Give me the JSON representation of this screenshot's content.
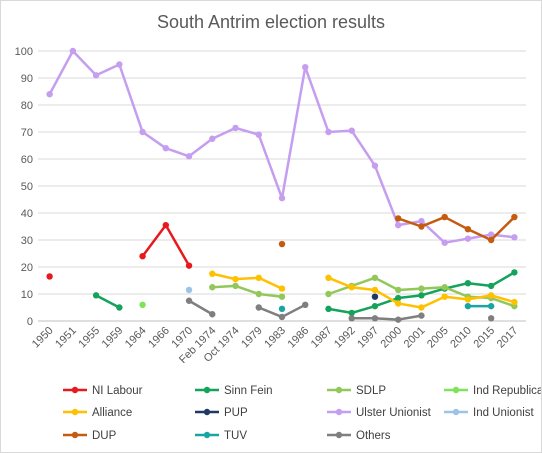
{
  "chart_data": {
    "type": "line",
    "title": "South Antrim election results",
    "xlabel": "",
    "ylabel": "",
    "ylim": [
      0,
      100
    ],
    "yticks": [
      "0",
      "10",
      "20",
      "30",
      "40",
      "50",
      "60",
      "70",
      "80",
      "90",
      "100"
    ],
    "grid": "horizontal",
    "legend_position": "bottom",
    "categories": [
      "1950",
      "1951",
      "1955",
      "1959",
      "1964",
      "1966",
      "1970",
      "Feb 1974",
      "Oct 1974",
      "1979",
      "1983",
      "1986",
      "1987",
      "1992",
      "1997",
      "2000",
      "2001",
      "2005",
      "2010",
      "2015",
      "2017"
    ],
    "series": [
      {
        "name": "NI Labour",
        "color": "#e8191c",
        "values": [
          16.5,
          null,
          null,
          null,
          24,
          35.5,
          20.5,
          null,
          null,
          null,
          null,
          null,
          null,
          null,
          null,
          null,
          null,
          null,
          null,
          null,
          null
        ]
      },
      {
        "name": "Sinn Fein",
        "color": "#13a35a",
        "values": [
          null,
          null,
          9.5,
          5,
          null,
          null,
          null,
          null,
          null,
          null,
          null,
          null,
          4.5,
          3,
          5.5,
          8.5,
          9.5,
          12,
          14,
          13,
          18
        ]
      },
      {
        "name": "SDLP",
        "color": "#92c85a",
        "values": [
          null,
          null,
          null,
          null,
          null,
          null,
          null,
          12.5,
          13,
          10,
          9,
          null,
          10,
          13,
          16,
          11.5,
          12,
          12.5,
          9,
          8.5,
          5.5
        ]
      },
      {
        "name": "Ind Republican",
        "color": "#7fe35a",
        "values": [
          null,
          null,
          null,
          null,
          6,
          null,
          null,
          null,
          null,
          null,
          null,
          null,
          null,
          null,
          null,
          null,
          null,
          null,
          null,
          null,
          null
        ]
      },
      {
        "name": "Alliance",
        "color": "#ffc000",
        "values": [
          null,
          null,
          null,
          null,
          null,
          null,
          null,
          17.5,
          15.5,
          16,
          12,
          null,
          16,
          12.5,
          11.5,
          6.5,
          5,
          9,
          8,
          9.5,
          7
        ]
      },
      {
        "name": "PUP",
        "color": "#203864",
        "values": [
          null,
          null,
          null,
          null,
          null,
          null,
          null,
          null,
          null,
          null,
          null,
          null,
          null,
          null,
          9,
          null,
          null,
          null,
          null,
          null,
          null
        ]
      },
      {
        "name": "Ulster Unionist",
        "color": "#c59ef0",
        "values": [
          84,
          100,
          91,
          95,
          70,
          64,
          61,
          67.5,
          71.5,
          69,
          45.5,
          94,
          70,
          70.5,
          57.5,
          35.5,
          37,
          29,
          30.5,
          32,
          31
        ]
      },
      {
        "name": "Ind Unionist",
        "color": "#9dc3e6",
        "values": [
          null,
          null,
          null,
          null,
          null,
          null,
          11.5,
          null,
          null,
          null,
          null,
          null,
          null,
          null,
          null,
          null,
          null,
          null,
          null,
          null,
          null
        ]
      },
      {
        "name": "DUP",
        "color": "#c55a11",
        "values": [
          null,
          null,
          null,
          null,
          null,
          null,
          null,
          null,
          null,
          null,
          28.5,
          null,
          null,
          null,
          null,
          38,
          35,
          38.5,
          34,
          30,
          38.5
        ]
      },
      {
        "name": "TUV",
        "color": "#1aa5a5",
        "values": [
          null,
          null,
          null,
          null,
          null,
          null,
          null,
          null,
          null,
          null,
          4.5,
          null,
          null,
          null,
          null,
          null,
          null,
          null,
          5.5,
          5.5,
          null
        ]
      },
      {
        "name": "Others",
        "color": "#7f7f7f",
        "values": [
          null,
          null,
          null,
          null,
          null,
          null,
          7.5,
          2.5,
          null,
          5,
          1.5,
          6,
          null,
          1,
          1,
          0.5,
          2,
          null,
          null,
          1,
          null
        ]
      }
    ]
  }
}
